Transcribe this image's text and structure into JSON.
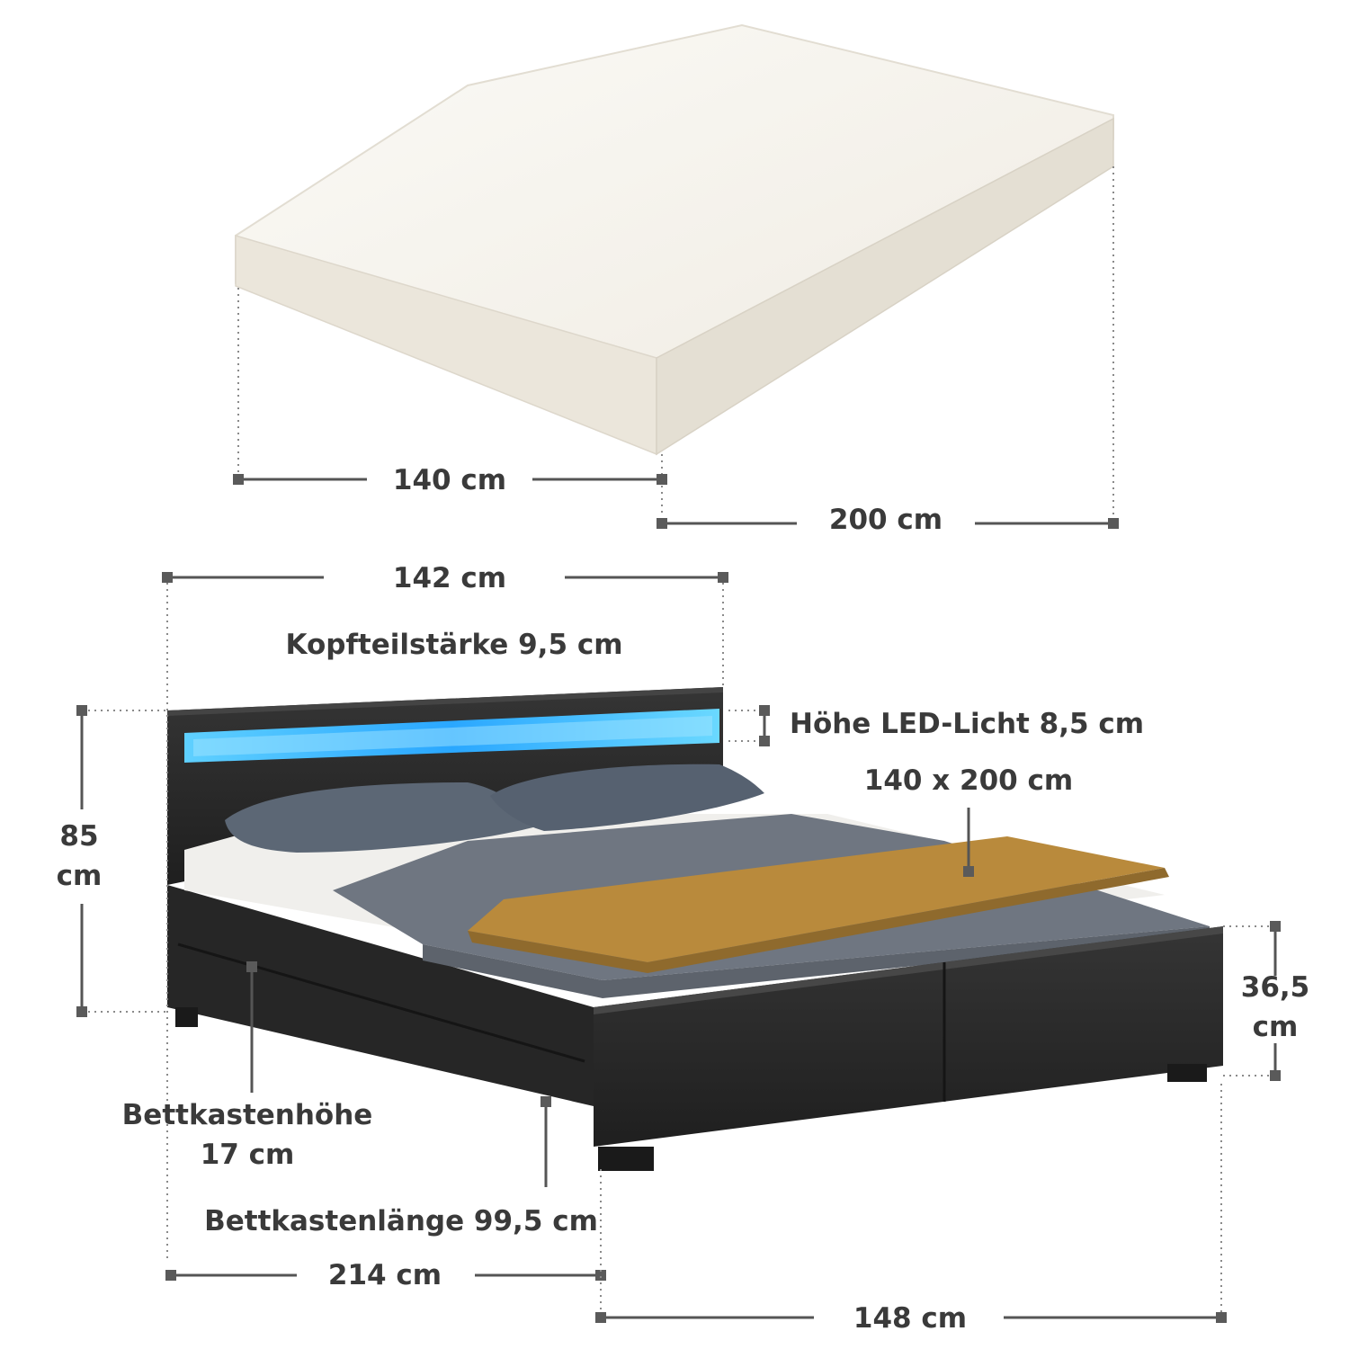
{
  "mattress": {
    "width_label": "140 cm",
    "length_label": "200 cm"
  },
  "bed": {
    "width_label": "142 cm",
    "headboard_thickness_label": "Kopfteilstärke 9,5 cm",
    "led_height_label": "Höhe LED-Licht 8,5 cm",
    "surface_label": "140 x 200 cm",
    "total_height_line1": "85",
    "total_height_line2": "cm",
    "frame_height_line1": "36,5",
    "frame_height_line2": "cm",
    "drawer_height_line1": "Bettkastenhöhe",
    "drawer_height_line2": "17 cm",
    "drawer_length_label": "Bettkastenlänge 99,5 cm",
    "length_label": "214 cm",
    "outer_width_label": "148 cm"
  },
  "colors": {
    "led": "#3fb6ff",
    "frame": "#2b2b2b",
    "throw": "#b98a3c",
    "blanket": "#6f7681",
    "pillow": "#5c6775",
    "mattress": "#f6f3ec"
  }
}
